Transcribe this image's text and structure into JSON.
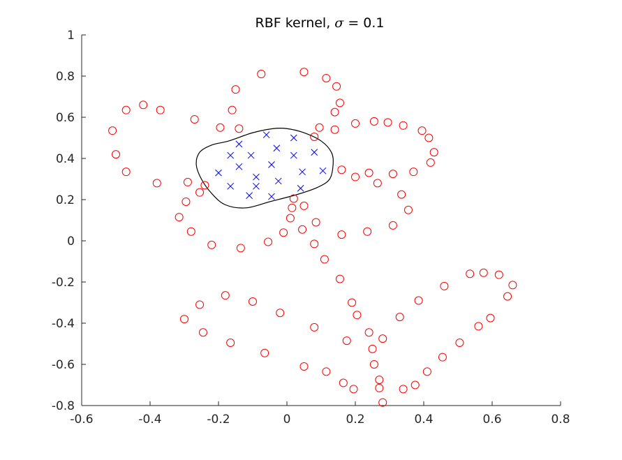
{
  "chart_data": {
    "type": "scatter",
    "title_prefix": "RBF kernel, ",
    "title_symbol": "σ",
    "title_suffix": " = 0.1",
    "xlabel": "",
    "ylabel": "",
    "xlim": [
      -0.6,
      0.8
    ],
    "ylim": [
      -0.8,
      1
    ],
    "xticks": [
      -0.6,
      -0.4,
      -0.2,
      0,
      0.2,
      0.4,
      0.6,
      0.8
    ],
    "yticks": [
      -0.8,
      -0.6,
      -0.4,
      -0.2,
      0,
      0.2,
      0.4,
      0.6,
      0.8,
      1
    ],
    "xtick_labels": [
      "-0.6",
      "-0.4",
      "-0.2",
      "0",
      "0.2",
      "0.4",
      "0.6",
      "0.8"
    ],
    "ytick_labels": [
      "-0.8",
      "-0.6",
      "-0.4",
      "-0.2",
      "0",
      "0.2",
      "0.4",
      "0.6",
      "0.8",
      "1"
    ],
    "grid": false,
    "legend": "none",
    "series": [
      {
        "marker": "circle",
        "color": "#ff0000",
        "points": [
          [
            -0.075,
            0.81
          ],
          [
            0.05,
            0.82
          ],
          [
            0.115,
            0.79
          ],
          [
            0.145,
            0.75
          ],
          [
            -0.15,
            0.735
          ],
          [
            0.155,
            0.67
          ],
          [
            -0.16,
            0.635
          ],
          [
            0.14,
            0.625
          ],
          [
            -0.47,
            0.635
          ],
          [
            -0.42,
            0.66
          ],
          [
            -0.37,
            0.635
          ],
          [
            -0.27,
            0.59
          ],
          [
            -0.195,
            0.55
          ],
          [
            -0.14,
            0.545
          ],
          [
            0.095,
            0.55
          ],
          [
            0.08,
            0.505
          ],
          [
            0.14,
            0.54
          ],
          [
            0.2,
            0.57
          ],
          [
            0.255,
            0.58
          ],
          [
            0.295,
            0.575
          ],
          [
            0.34,
            0.56
          ],
          [
            0.395,
            0.535
          ],
          [
            0.415,
            0.5
          ],
          [
            0.43,
            0.43
          ],
          [
            0.42,
            0.38
          ],
          [
            -0.51,
            0.535
          ],
          [
            -0.5,
            0.42
          ],
          [
            -0.47,
            0.335
          ],
          [
            -0.38,
            0.28
          ],
          [
            -0.29,
            0.285
          ],
          [
            -0.24,
            0.27
          ],
          [
            -0.255,
            0.235
          ],
          [
            -0.295,
            0.19
          ],
          [
            -0.315,
            0.115
          ],
          [
            -0.28,
            0.045
          ],
          [
            -0.22,
            -0.02
          ],
          [
            -0.135,
            -0.035
          ],
          [
            -0.055,
            -0.005
          ],
          [
            -0.01,
            0.04
          ],
          [
            0.045,
            0.055
          ],
          [
            0.08,
            -0.015
          ],
          [
            0.085,
            0.09
          ],
          [
            0.01,
            0.11
          ],
          [
            0.015,
            0.16
          ],
          [
            0.05,
            0.17
          ],
          [
            0.02,
            0.205
          ],
          [
            0.16,
            0.345
          ],
          [
            0.2,
            0.31
          ],
          [
            0.24,
            0.33
          ],
          [
            0.265,
            0.28
          ],
          [
            0.31,
            0.325
          ],
          [
            0.37,
            0.335
          ],
          [
            0.335,
            0.225
          ],
          [
            0.355,
            0.15
          ],
          [
            0.31,
            0.075
          ],
          [
            0.235,
            0.045
          ],
          [
            0.16,
            0.03
          ],
          [
            0.11,
            -0.09
          ],
          [
            0.155,
            -0.185
          ],
          [
            0.19,
            -0.3
          ],
          [
            0.205,
            -0.36
          ],
          [
            0.08,
            -0.42
          ],
          [
            -0.1,
            -0.295
          ],
          [
            -0.18,
            -0.265
          ],
          [
            -0.255,
            -0.31
          ],
          [
            -0.3,
            -0.38
          ],
          [
            -0.245,
            -0.445
          ],
          [
            -0.165,
            -0.495
          ],
          [
            -0.065,
            -0.545
          ],
          [
            -0.02,
            -0.35
          ],
          [
            0.05,
            -0.61
          ],
          [
            0.115,
            -0.635
          ],
          [
            0.165,
            -0.69
          ],
          [
            0.195,
            -0.72
          ],
          [
            0.175,
            -0.485
          ],
          [
            0.24,
            -0.445
          ],
          [
            0.25,
            -0.525
          ],
          [
            0.28,
            -0.475
          ],
          [
            0.255,
            -0.6
          ],
          [
            0.27,
            -0.675
          ],
          [
            0.27,
            -0.715
          ],
          [
            0.28,
            -0.785
          ],
          [
            0.34,
            -0.72
          ],
          [
            0.375,
            -0.7
          ],
          [
            0.41,
            -0.635
          ],
          [
            0.455,
            -0.565
          ],
          [
            0.505,
            -0.495
          ],
          [
            0.56,
            -0.415
          ],
          [
            0.595,
            -0.375
          ],
          [
            0.645,
            -0.27
          ],
          [
            0.66,
            -0.215
          ],
          [
            0.62,
            -0.165
          ],
          [
            0.575,
            -0.155
          ],
          [
            0.535,
            -0.16
          ],
          [
            0.46,
            -0.22
          ],
          [
            0.385,
            -0.29
          ],
          [
            0.33,
            -0.37
          ]
        ]
      },
      {
        "marker": "x",
        "color": "#0000ff",
        "points": [
          [
            -0.06,
            0.515
          ],
          [
            0.02,
            0.5
          ],
          [
            -0.14,
            0.47
          ],
          [
            -0.03,
            0.45
          ],
          [
            0.08,
            0.43
          ],
          [
            -0.165,
            0.415
          ],
          [
            -0.105,
            0.415
          ],
          [
            0.02,
            0.415
          ],
          [
            -0.14,
            0.36
          ],
          [
            -0.045,
            0.37
          ],
          [
            0.045,
            0.335
          ],
          [
            0.105,
            0.34
          ],
          [
            -0.2,
            0.33
          ],
          [
            -0.09,
            0.31
          ],
          [
            -0.025,
            0.29
          ],
          [
            -0.165,
            0.265
          ],
          [
            -0.09,
            0.265
          ],
          [
            0.04,
            0.255
          ],
          [
            -0.11,
            0.22
          ],
          [
            -0.045,
            0.215
          ]
        ]
      }
    ],
    "decision_boundary": {
      "color": "#000000",
      "points": [
        [
          -0.17,
          0.485
        ],
        [
          -0.1,
          0.525
        ],
        [
          -0.04,
          0.545
        ],
        [
          0.0,
          0.545
        ],
        [
          0.05,
          0.525
        ],
        [
          0.1,
          0.485
        ],
        [
          0.13,
          0.43
        ],
        [
          0.135,
          0.37
        ],
        [
          0.125,
          0.3
        ],
        [
          0.09,
          0.26
        ],
        [
          0.03,
          0.225
        ],
        [
          -0.05,
          0.19
        ],
        [
          -0.12,
          0.16
        ],
        [
          -0.18,
          0.175
        ],
        [
          -0.22,
          0.23
        ],
        [
          -0.25,
          0.3
        ],
        [
          -0.265,
          0.37
        ],
        [
          -0.255,
          0.43
        ],
        [
          -0.22,
          0.465
        ]
      ]
    }
  }
}
